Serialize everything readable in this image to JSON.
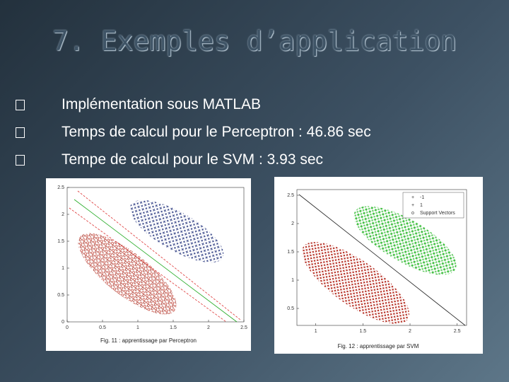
{
  "title": "7. Exemples d’application",
  "bullets": [
    "Implémentation sous MATLAB",
    "Temps de calcul pour le Perceptron : 46.86 sec",
    "Tempe de calcul pour le SVM : 3.93 sec"
  ],
  "figures": [
    {
      "caption": "Fig. 11 : apprentissage par Perceptron",
      "xlim": [
        0,
        2.5
      ],
      "ylim": [
        0,
        2.5
      ],
      "xticks": [
        0,
        0.5,
        1,
        1.5,
        2,
        2.5
      ],
      "yticks": [
        0,
        0.5,
        1,
        1.5,
        2,
        2.5
      ]
    },
    {
      "caption": "Fig. 12 : apprentissage par SVM",
      "xlim": [
        0.8,
        2.6
      ],
      "ylim": [
        0.2,
        2.6
      ],
      "xticks": [
        1,
        1.5,
        2,
        2.5
      ],
      "yticks": [
        0.5,
        1,
        1.5,
        2,
        2.5
      ],
      "legend": [
        "-1",
        "1",
        "Support Vectors"
      ]
    }
  ]
}
